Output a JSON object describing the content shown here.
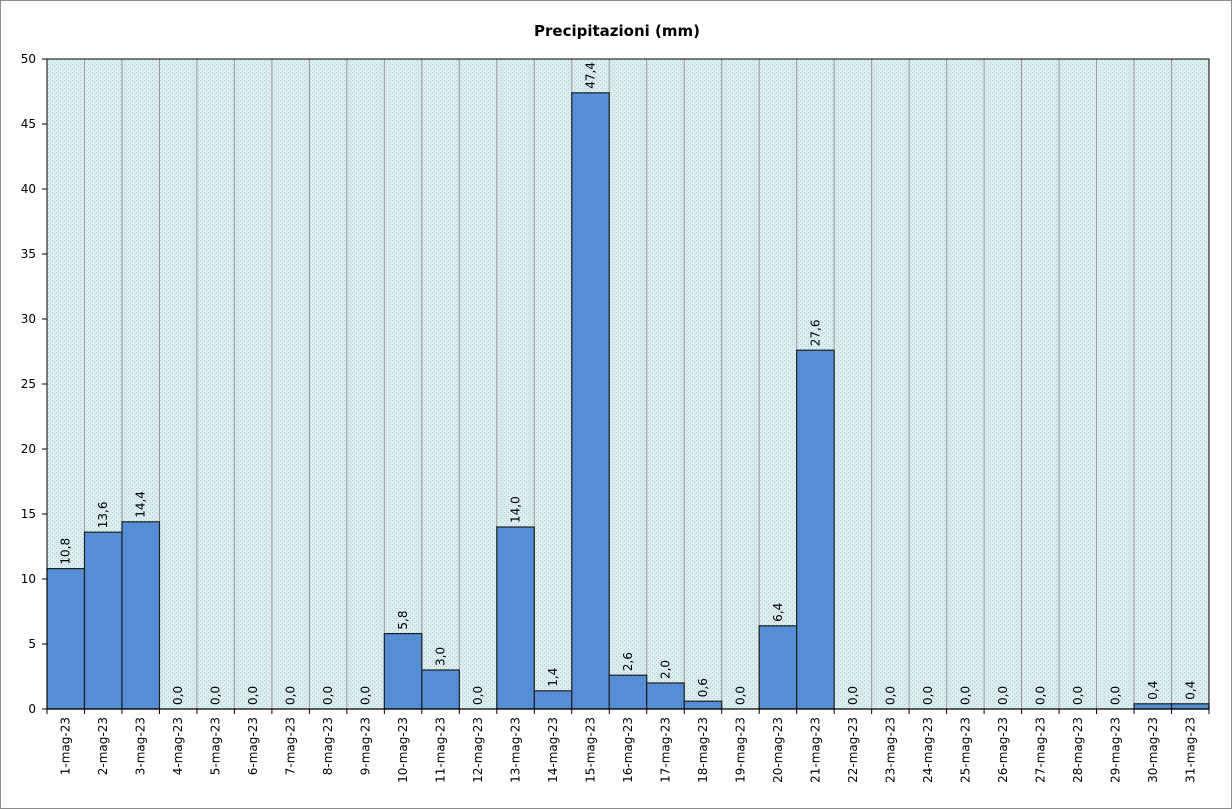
{
  "chart_data": {
    "type": "bar",
    "title": "Precipitazioni  (mm)",
    "xlabel": "",
    "ylabel": "",
    "ylim": [
      0,
      50
    ],
    "yticks": [
      "0",
      "5",
      "10",
      "15",
      "20",
      "25",
      "30",
      "35",
      "40",
      "45",
      "50"
    ],
    "grid": true,
    "legend": "none",
    "categories": [
      "1-mag-23",
      "2-mag-23",
      "3-mag-23",
      "4-mag-23",
      "5-mag-23",
      "6-mag-23",
      "7-mag-23",
      "8-mag-23",
      "9-mag-23",
      "10-mag-23",
      "11-mag-23",
      "12-mag-23",
      "13-mag-23",
      "14-mag-23",
      "15-mag-23",
      "16-mag-23",
      "17-mag-23",
      "18-mag-23",
      "19-mag-23",
      "20-mag-23",
      "21-mag-23",
      "22-mag-23",
      "23-mag-23",
      "24-mag-23",
      "25-mag-23",
      "26-mag-23",
      "27-mag-23",
      "28-mag-23",
      "29-mag-23",
      "30-mag-23",
      "31-mag-23"
    ],
    "values": [
      10.8,
      13.6,
      14.4,
      0.0,
      0.0,
      0.0,
      0.0,
      0.0,
      0.0,
      5.8,
      3.0,
      0.0,
      14.0,
      1.4,
      47.4,
      2.6,
      2.0,
      0.6,
      0.0,
      6.4,
      27.6,
      0.0,
      0.0,
      0.0,
      0.0,
      0.0,
      0.0,
      0.0,
      0.0,
      0.4,
      0.4
    ],
    "data_labels": [
      "10,8",
      "13,6",
      "14,4",
      "0,0",
      "0,0",
      "0,0",
      "0,0",
      "0,0",
      "0,0",
      "5,8",
      "3,0",
      "0,0",
      "14,0",
      "1,4",
      "47,4",
      "2,6",
      "2,0",
      "0,6",
      "0,0",
      "6,4",
      "27,6",
      "0,0",
      "0,0",
      "0,0",
      "0,0",
      "0,0",
      "0,0",
      "0,0",
      "0,0",
      "0,4",
      "0,4"
    ],
    "colors": {
      "bar_fill": "#558ed5",
      "bar_stroke": "#1f1f1f",
      "plot_background": "#dcecef",
      "plot_dots": "#a7d2d8",
      "gridline": "#9a9a9a",
      "axis": "#000000",
      "frame": "#8c8c8c"
    }
  }
}
